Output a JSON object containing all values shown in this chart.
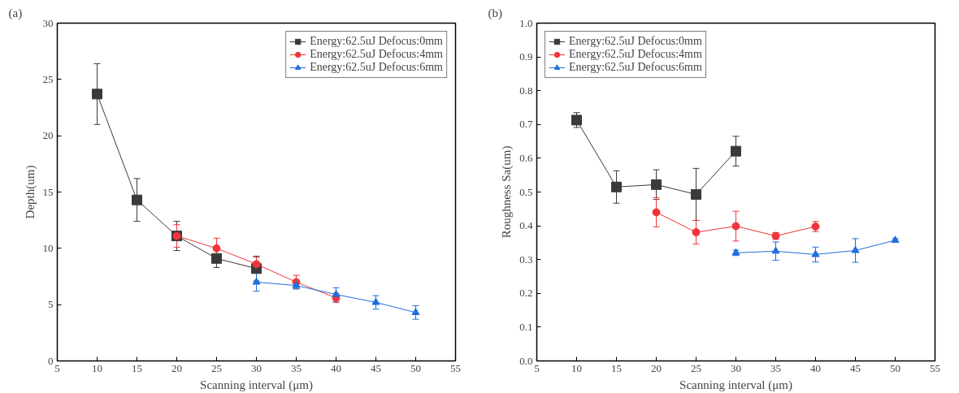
{
  "chart_data": [
    {
      "type": "line",
      "annotations": [
        "(a)"
      ],
      "xlabel": "Scanning interval (μm)",
      "ylabel": "Depth(um)",
      "xlim": [
        5,
        55
      ],
      "xticks": [
        5,
        10,
        15,
        20,
        25,
        30,
        35,
        40,
        45,
        50,
        55
      ],
      "ylim": [
        0,
        30
      ],
      "yticks": [
        0,
        5,
        10,
        15,
        20,
        25,
        30
      ],
      "grid": false,
      "legend": "top right",
      "line_style": "solid",
      "series": [
        {
          "name": "Energy:62.5uJ Defocus:0mm",
          "color": "#3a3a3a",
          "marker": "square",
          "x": [
            10,
            15,
            20,
            25,
            30
          ],
          "values": [
            23.7,
            14.3,
            11.1,
            9.1,
            8.2
          ],
          "errors": [
            2.7,
            1.9,
            1.3,
            0.8,
            1.1
          ]
        },
        {
          "name": "Energy:62.5uJ Defocus:4mm",
          "color": "#f0353a",
          "marker": "circle",
          "x": [
            20,
            25,
            30,
            35,
            40
          ],
          "values": [
            11.1,
            10.0,
            8.6,
            7.0,
            5.6
          ],
          "errors": [
            1.0,
            0.9,
            0.6,
            0.6,
            0.4
          ]
        },
        {
          "name": "Energy:62.5uJ Defocus:6mm",
          "color": "#1f6fdc",
          "marker": "triangle",
          "x": [
            30,
            35,
            40,
            45,
            50
          ],
          "values": [
            7.0,
            6.7,
            5.9,
            5.2,
            4.3
          ],
          "errors": [
            0.8,
            0.3,
            0.6,
            0.6,
            0.6
          ]
        }
      ]
    },
    {
      "type": "line",
      "annotations": [
        "(b)"
      ],
      "xlabel": "Scanning interval (μm)",
      "ylabel": "Roughness Sa(um)",
      "xlim": [
        5,
        55
      ],
      "xticks": [
        5,
        10,
        15,
        20,
        25,
        30,
        35,
        40,
        45,
        50,
        55
      ],
      "ylim": [
        0,
        1
      ],
      "yticks": [
        {
          "value": 0,
          "label": "0.0"
        },
        0.1,
        0.2,
        0.3,
        0.4,
        0.5,
        0.6,
        0.7,
        0.8,
        0.9,
        {
          "value": 1,
          "label": "1.0"
        }
      ],
      "grid": false,
      "legend": "top left",
      "line_style": "solid",
      "series": [
        {
          "name": "Energy:62.5uJ Defocus:0mm",
          "color": "#3a3a3a",
          "marker": "square",
          "x": [
            10,
            15,
            20,
            25,
            30
          ],
          "values": [
            0.713,
            0.515,
            0.522,
            0.493,
            0.621
          ],
          "errors": [
            0.022,
            0.048,
            0.044,
            0.077,
            0.044
          ]
        },
        {
          "name": "Energy:62.5uJ Defocus:4mm",
          "color": "#f0353a",
          "marker": "circle",
          "x": [
            20,
            25,
            30,
            35,
            40
          ],
          "values": [
            0.44,
            0.381,
            0.399,
            0.37,
            0.398
          ],
          "errors": [
            0.043,
            0.035,
            0.044,
            0.01,
            0.015
          ]
        },
        {
          "name": "Energy:62.5uJ Defocus:6mm",
          "color": "#1f6fdc",
          "marker": "triangle",
          "x": [
            30,
            35,
            40,
            45,
            50
          ],
          "values": [
            0.32,
            0.325,
            0.315,
            0.327,
            0.357
          ],
          "errors": [
            0.008,
            0.027,
            0.022,
            0.035,
            0.005
          ]
        }
      ]
    }
  ]
}
